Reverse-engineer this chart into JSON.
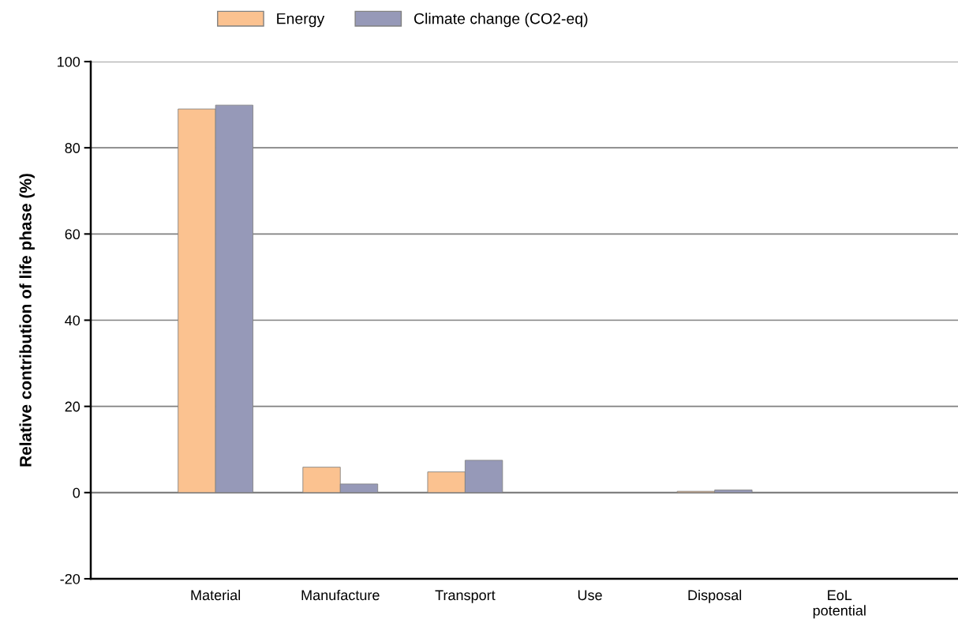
{
  "chart_data": {
    "type": "bar",
    "ylabel": "Relative contribution of life phase (%)",
    "categories": [
      "Material",
      "Manufacture",
      "Transport",
      "Use",
      "Disposal",
      "EoL\npotential"
    ],
    "series": [
      {
        "name": "Energy",
        "color": "#fbc290",
        "values": [
          89.0,
          5.9,
          4.8,
          null,
          0.3,
          null
        ]
      },
      {
        "name": "Climate change (CO2-eq)",
        "color": "#9699b8",
        "values": [
          89.9,
          2.0,
          7.5,
          null,
          0.6,
          null
        ]
      }
    ],
    "ylim": [
      -20,
      100
    ],
    "yticks": [
      -20,
      0,
      20,
      40,
      60,
      80,
      100
    ],
    "grid": "y",
    "legend": "top"
  }
}
